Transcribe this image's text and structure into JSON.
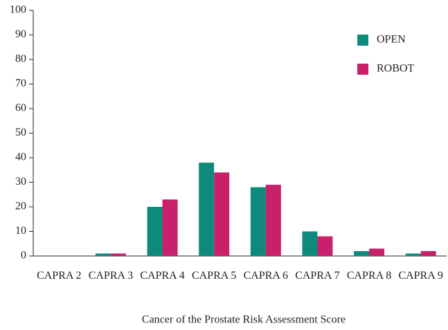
{
  "chart_data": {
    "type": "bar",
    "x_label": "Cancer of the Prostate Risk Assessment Score",
    "categories": [
      "CAPRA 2",
      "CAPRA 3",
      "CAPRA 4",
      "CAPRA 5",
      "CAPRA 6",
      "CAPRA 7",
      "CAPRA 8",
      "CAPRA 9"
    ],
    "series": [
      {
        "name": "OPEN",
        "color": "#0e8a7d",
        "values": [
          0,
          1,
          20,
          38,
          28,
          10,
          2,
          1
        ]
      },
      {
        "name": "ROBOT",
        "color": "#c8206a",
        "values": [
          0,
          1,
          23,
          34,
          29,
          8,
          3,
          2
        ]
      }
    ],
    "ylim": [
      0,
      100
    ],
    "yticks": [
      0,
      10,
      20,
      30,
      40,
      50,
      60,
      70,
      80,
      90,
      100
    ],
    "legend": "upper right"
  }
}
